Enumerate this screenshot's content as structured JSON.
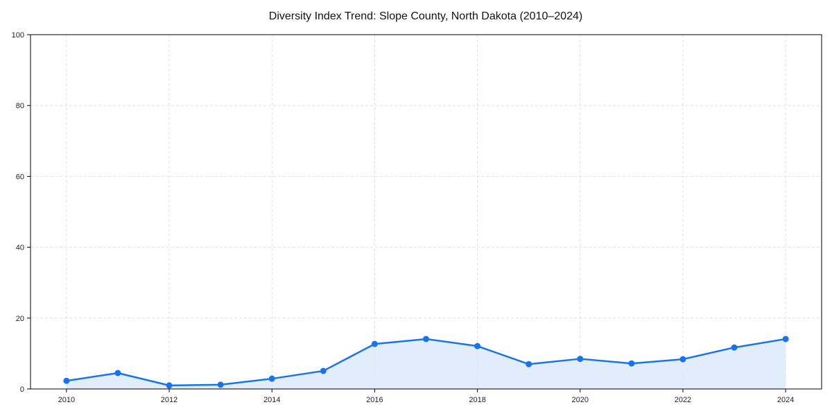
{
  "chart_data": {
    "type": "line",
    "title": "Diversity Index Trend: Slope County, North Dakota (2010–2024)",
    "xlabel": "",
    "ylabel": "",
    "x": [
      2010,
      2011,
      2012,
      2013,
      2014,
      2015,
      2016,
      2017,
      2018,
      2019,
      2020,
      2021,
      2022,
      2023,
      2024
    ],
    "series": [
      {
        "name": "Diversity Index",
        "values": [
          2.3,
          4.5,
          1.0,
          1.2,
          2.9,
          5.1,
          12.7,
          14.1,
          12.1,
          7.0,
          8.5,
          7.2,
          8.4,
          11.7,
          14.1
        ],
        "color": "#1a73e8",
        "fill_color": "#dbe9fb",
        "markers": true,
        "area_fill": true
      }
    ],
    "xticks": [
      2010,
      2012,
      2014,
      2016,
      2018,
      2020,
      2022,
      2024
    ],
    "xtick_labels": [
      "2010",
      "2012",
      "2014",
      "2016",
      "2018",
      "2020",
      "2022",
      "2024"
    ],
    "yticks": [
      0,
      20,
      40,
      60,
      80,
      100
    ],
    "ytick_labels": [
      "0",
      "20",
      "40",
      "60",
      "80",
      "100"
    ],
    "ylim": [
      0,
      100
    ],
    "xlim": [
      2009.3,
      2024.7
    ],
    "grid": true,
    "legend": null
  }
}
